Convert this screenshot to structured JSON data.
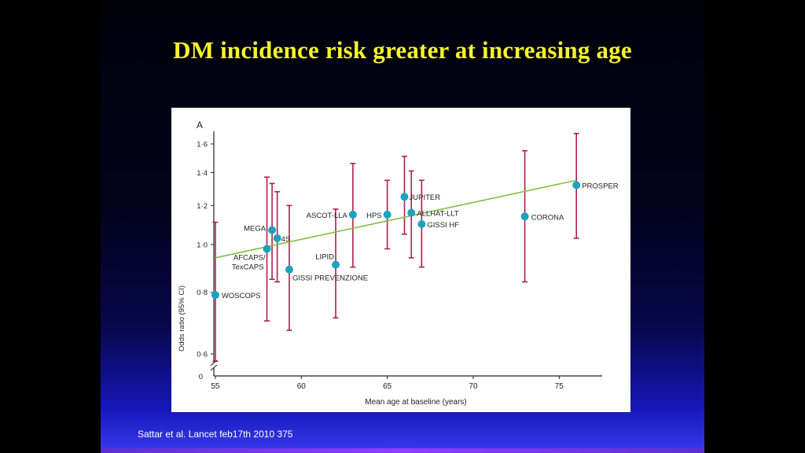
{
  "slide": {
    "title": "DM incidence risk greater at increasing age",
    "citation": "Sattar et al. Lancet feb17th 2010 375"
  },
  "colors": {
    "title": "#f5f52a",
    "point": "#1aa3bf",
    "error_bar": "#b01e4e",
    "trend_line": "#7fbf3f",
    "axis": "#222222"
  },
  "chart_data": {
    "type": "scatter",
    "panel_label": "A",
    "xlabel": "Mean age at baseline (years)",
    "ylabel": "Odds ratio (95% CI)",
    "xlim": [
      54.5,
      77.5
    ],
    "x_ticks": [
      55,
      60,
      65,
      70,
      75
    ],
    "x_tick_labels": [
      "55",
      "60",
      "65",
      "70",
      "75"
    ],
    "y_ticks": [
      0.6,
      0.8,
      1.0,
      1.2,
      1.4,
      1.6
    ],
    "y_tick_labels": [
      "0·6",
      "0·8",
      "1·0",
      "1·2",
      "1·4",
      "1·6"
    ],
    "y_zero_label": "0",
    "y_scale": "log",
    "axis_break": true,
    "grid": false,
    "points": [
      {
        "label": "WOSCOPS",
        "x": 55.0,
        "y": 0.79,
        "ci_low": 0.58,
        "ci_high": 1.11
      },
      {
        "label": "AFCAPS/",
        "label2": "TexCAPS",
        "x": 58.0,
        "y": 0.98,
        "ci_low": 0.7,
        "ci_high": 1.37
      },
      {
        "label": "MEGA",
        "x": 58.3,
        "y": 1.07,
        "ci_low": 0.85,
        "ci_high": 1.33
      },
      {
        "label": "4S",
        "x": 58.6,
        "y": 1.03,
        "ci_low": 0.84,
        "ci_high": 1.28
      },
      {
        "label": "GISSI PREVENZIONE",
        "x": 59.3,
        "y": 0.89,
        "ci_low": 0.67,
        "ci_high": 1.2
      },
      {
        "label": "LIPID",
        "x": 62.0,
        "y": 0.91,
        "ci_low": 0.71,
        "ci_high": 1.18
      },
      {
        "label": "ASCOT-LLA",
        "x": 63.0,
        "y": 1.15,
        "ci_low": 0.9,
        "ci_high": 1.46
      },
      {
        "label": "HPS",
        "x": 65.0,
        "y": 1.15,
        "ci_low": 0.98,
        "ci_high": 1.35
      },
      {
        "label": "JUPITER",
        "x": 66.0,
        "y": 1.25,
        "ci_low": 1.05,
        "ci_high": 1.51
      },
      {
        "label": "ALLHAT-LLT",
        "x": 66.4,
        "y": 1.16,
        "ci_low": 0.94,
        "ci_high": 1.41
      },
      {
        "label": "GISSI HF",
        "x": 67.0,
        "y": 1.1,
        "ci_low": 0.9,
        "ci_high": 1.35
      },
      {
        "label": "CORONA",
        "x": 73.0,
        "y": 1.14,
        "ci_low": 0.84,
        "ci_high": 1.55
      },
      {
        "label": "PROSPER",
        "x": 76.0,
        "y": 1.32,
        "ci_low": 1.03,
        "ci_high": 1.68
      }
    ],
    "trend_line": {
      "x": [
        55.0,
        76.0
      ],
      "y": [
        0.94,
        1.35
      ]
    }
  }
}
